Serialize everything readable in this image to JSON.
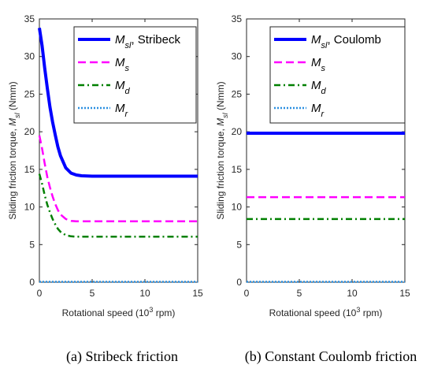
{
  "chart_data": [
    {
      "type": "line",
      "caption": "(a) Stribeck friction",
      "xlabel": "Rotational speed (10",
      "xlabel_sup": "3",
      "xlabel_tail": " rpm)",
      "ylabel": "Sliding friction torque, ",
      "ylabel_sym": "M",
      "ylabel_sub": "sl",
      "ylabel_tail": " (Nmm)",
      "xlim": [
        0,
        15
      ],
      "ylim": [
        0,
        35
      ],
      "xticks": [
        "0",
        "5",
        "10",
        "15"
      ],
      "yticks": [
        "0",
        "5",
        "10",
        "15",
        "20",
        "25",
        "30",
        "35"
      ],
      "grid": false,
      "legend_position": "top-right",
      "series": [
        {
          "name": "M",
          "sub": "sl",
          "suffix": ", Stribeck",
          "color": "#0000ff",
          "style": "solid",
          "x": [
            0,
            0.25,
            0.5,
            0.75,
            1,
            1.25,
            1.5,
            1.75,
            2,
            2.5,
            3,
            3.5,
            4,
            5,
            6,
            8,
            10,
            12,
            15
          ],
          "y": [
            33.8,
            31.5,
            28.5,
            25.8,
            23.3,
            21.3,
            19.6,
            18.0,
            16.8,
            15.2,
            14.5,
            14.25,
            14.15,
            14.1,
            14.1,
            14.1,
            14.1,
            14.1,
            14.1
          ]
        },
        {
          "name": "M",
          "sub": "s",
          "suffix": "",
          "color": "#ff00ff",
          "style": "dashed",
          "x": [
            0,
            0.25,
            0.5,
            0.75,
            1,
            1.25,
            1.5,
            1.75,
            2,
            2.5,
            3,
            3.5,
            4,
            5,
            6,
            8,
            10,
            12,
            15
          ],
          "y": [
            19.5,
            17.8,
            15.8,
            14.0,
            12.6,
            11.4,
            10.4,
            9.6,
            9.0,
            8.4,
            8.15,
            8.1,
            8.1,
            8.1,
            8.1,
            8.1,
            8.1,
            8.1,
            8.1
          ]
        },
        {
          "name": "M",
          "sub": "d",
          "suffix": "",
          "color": "#008000",
          "style": "dashdot",
          "x": [
            0,
            0.25,
            0.5,
            0.75,
            1,
            1.25,
            1.5,
            1.75,
            2,
            2.5,
            3,
            3.5,
            4,
            5,
            6,
            8,
            10,
            12,
            15
          ],
          "y": [
            14.4,
            13.1,
            11.6,
            10.3,
            9.3,
            8.4,
            7.7,
            7.1,
            6.7,
            6.25,
            6.1,
            6.05,
            6.05,
            6.05,
            6.05,
            6.05,
            6.05,
            6.05,
            6.05
          ]
        },
        {
          "name": "M",
          "sub": "r",
          "suffix": "",
          "color": "#2a8fe0",
          "style": "dotted",
          "x": [
            0,
            15
          ],
          "y": [
            0.05,
            0.05
          ]
        }
      ]
    },
    {
      "type": "line",
      "caption": "(b) Constant Coulomb friction",
      "xlabel": "Rotational speed (10",
      "xlabel_sup": "3",
      "xlabel_tail": " rpm)",
      "ylabel": "Sliding friction torque, ",
      "ylabel_sym": "M",
      "ylabel_sub": "sl",
      "ylabel_tail": " (Nmm)",
      "xlim": [
        0,
        15
      ],
      "ylim": [
        0,
        35
      ],
      "xticks": [
        "0",
        "5",
        "10",
        "15"
      ],
      "yticks": [
        "0",
        "5",
        "10",
        "15",
        "20",
        "25",
        "30",
        "35"
      ],
      "grid": false,
      "legend_position": "top-right",
      "series": [
        {
          "name": "M",
          "sub": "sl",
          "suffix": ", Coulomb",
          "color": "#0000ff",
          "style": "solid",
          "x": [
            0,
            15
          ],
          "y": [
            19.8,
            19.8
          ]
        },
        {
          "name": "M",
          "sub": "s",
          "suffix": "",
          "color": "#ff00ff",
          "style": "dashed",
          "x": [
            0,
            15
          ],
          "y": [
            11.3,
            11.3
          ]
        },
        {
          "name": "M",
          "sub": "d",
          "suffix": "",
          "color": "#008000",
          "style": "dashdot",
          "x": [
            0,
            15
          ],
          "y": [
            8.4,
            8.4
          ]
        },
        {
          "name": "M",
          "sub": "r",
          "suffix": "",
          "color": "#2a8fe0",
          "style": "dotted",
          "x": [
            0,
            15
          ],
          "y": [
            0.05,
            0.05
          ]
        }
      ]
    }
  ]
}
